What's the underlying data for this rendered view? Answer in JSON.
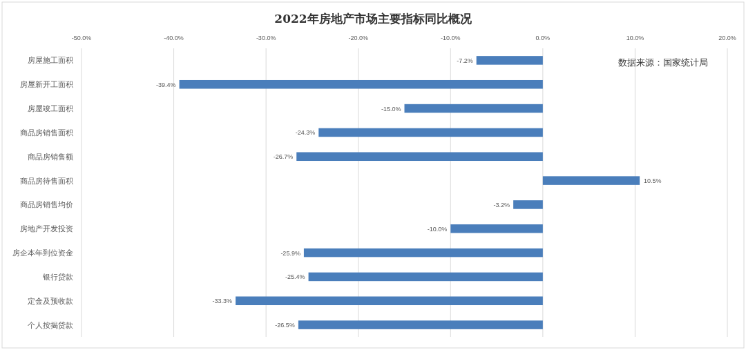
{
  "chart_data": {
    "type": "bar",
    "orientation": "horizontal",
    "title": "2022年房地产市场主要指标同比概况",
    "categories": [
      "房屋施工面积",
      "房屋新开工面积",
      "房屋竣工面积",
      "商品房销售面积",
      "商品房销售额",
      "商品房待售面积",
      "商品房销售均价",
      "房地产开发投资",
      "房企本年到位资金",
      "银行贷款",
      "定金及预收款",
      "个人按揭贷款"
    ],
    "values": [
      -7.2,
      -39.4,
      -15.0,
      -24.3,
      -26.7,
      10.5,
      -3.2,
      -10.0,
      -25.9,
      -25.4,
      -33.3,
      -26.5
    ],
    "value_labels": [
      "-7.2%",
      "-39.4%",
      "-15.0%",
      "-24.3%",
      "-26.7%",
      "10.5%",
      "-3.2%",
      "-10.0%",
      "-25.9%",
      "-25.4%",
      "-33.3%",
      "-26.5%"
    ],
    "color": "#4a7ebb",
    "xlim": [
      -50,
      20
    ],
    "xticks": [
      {
        "value": -50,
        "label": "-50.0%"
      },
      {
        "value": -40,
        "label": "-40.0%"
      },
      {
        "value": -30,
        "label": "-30.0%"
      },
      {
        "value": -20,
        "label": "-20.0%"
      },
      {
        "value": -10,
        "label": "-10.0%"
      },
      {
        "value": 0,
        "label": "0.0%"
      },
      {
        "value": 10,
        "label": "10.0%"
      },
      {
        "value": 20,
        "label": "20.0%"
      }
    ],
    "grid": "x",
    "annotations": [
      "数据来源：国家统计局"
    ]
  }
}
